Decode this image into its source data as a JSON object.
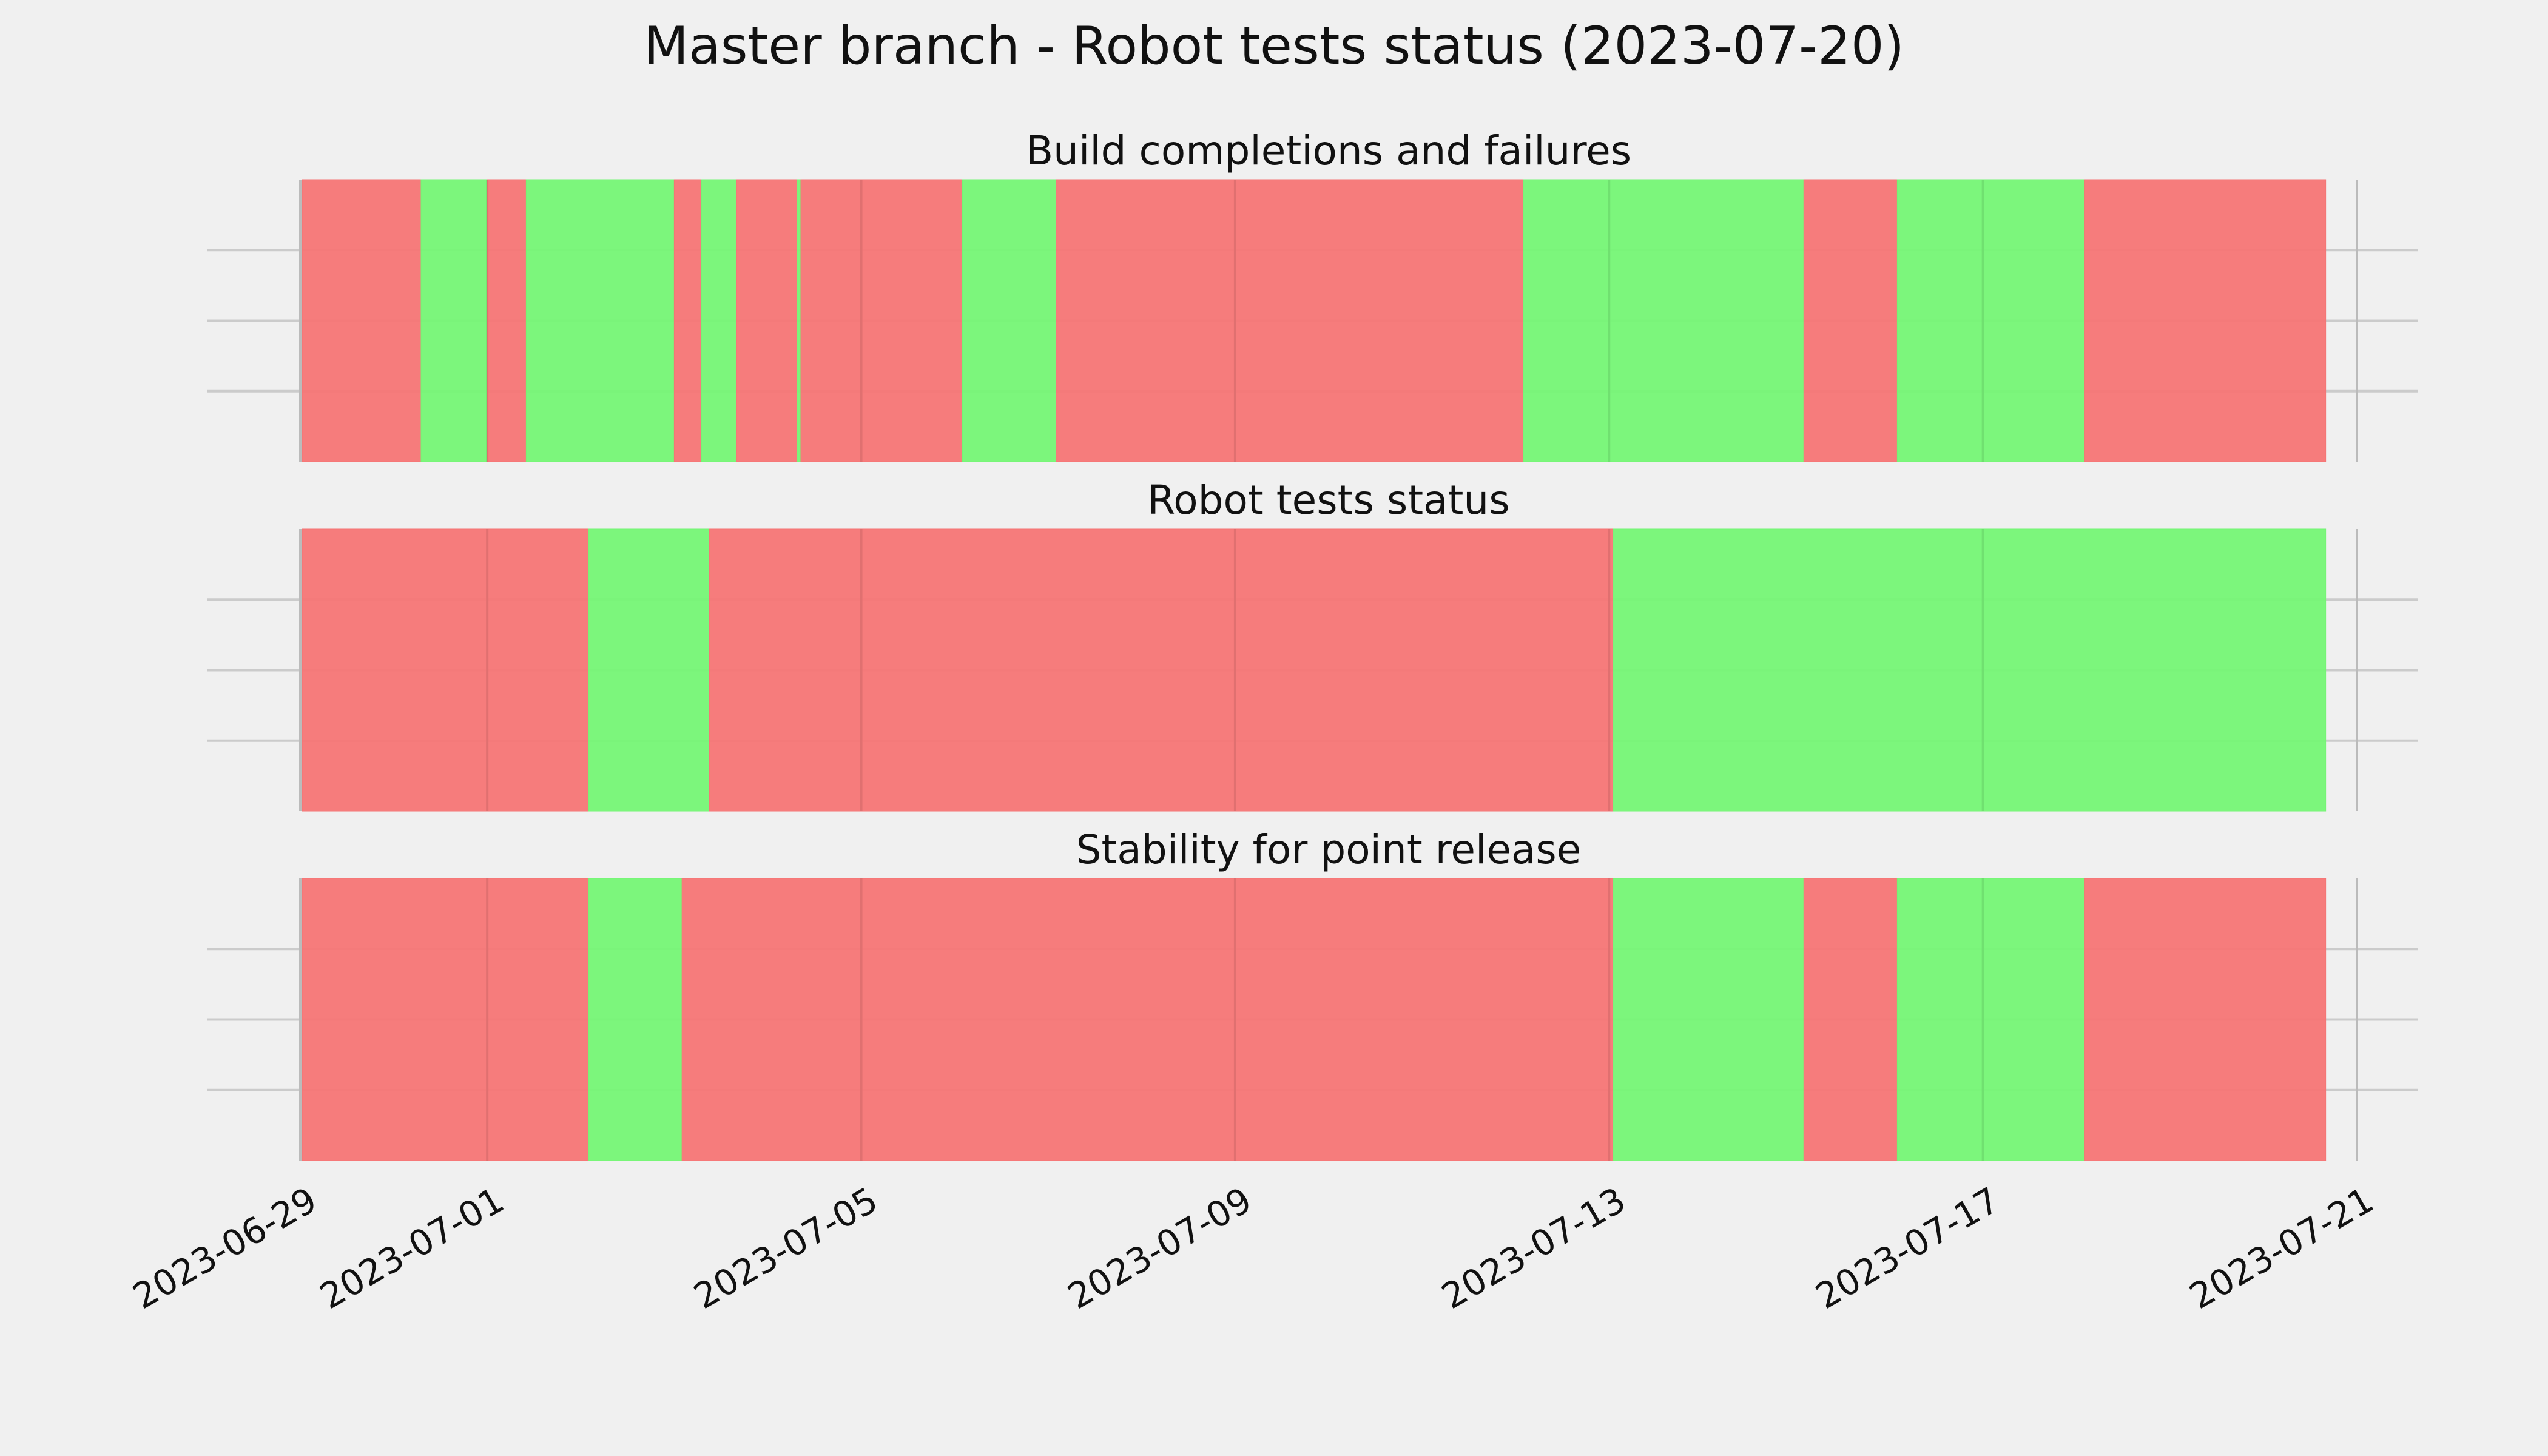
{
  "chart_data": {
    "type": "timeline",
    "title": "Master branch - Robot tests status (2023-07-20)",
    "x_axis": {
      "type": "date",
      "range": [
        "2023-06-29",
        "2023-07-21"
      ],
      "ticks": [
        "2023-06-29",
        "2023-07-01",
        "2023-07-05",
        "2023-07-09",
        "2023-07-13",
        "2023-07-17",
        "2023-07-21"
      ]
    },
    "grid": true,
    "colors": {
      "pass": "#75f575",
      "fail": "#f57575",
      "background": "#f0f0f0",
      "grid": "#cbcbcb"
    },
    "panels": [
      {
        "title": "Build completions and failures",
        "segments": [
          {
            "start": "2023-06-29 00:30",
            "end": "2023-06-30 07:00",
            "status": "fail"
          },
          {
            "start": "2023-06-30 07:00",
            "end": "2023-07-01 00:00",
            "status": "pass"
          },
          {
            "start": "2023-07-01 00:00",
            "end": "2023-07-01 10:00",
            "status": "fail"
          },
          {
            "start": "2023-07-01 10:00",
            "end": "2023-07-03 00:00",
            "status": "pass"
          },
          {
            "start": "2023-07-03 00:00",
            "end": "2023-07-03 07:00",
            "status": "fail"
          },
          {
            "start": "2023-07-03 07:00",
            "end": "2023-07-03 16:00",
            "status": "pass"
          },
          {
            "start": "2023-07-03 16:00",
            "end": "2023-07-04 07:30",
            "status": "fail"
          },
          {
            "start": "2023-07-04 07:30",
            "end": "2023-07-04 08:30",
            "status": "pass"
          },
          {
            "start": "2023-07-04 08:30",
            "end": "2023-07-06 02:00",
            "status": "fail"
          },
          {
            "start": "2023-07-06 02:00",
            "end": "2023-07-07 02:00",
            "status": "pass"
          },
          {
            "start": "2023-07-07 02:00",
            "end": "2023-07-12 02:00",
            "status": "fail"
          },
          {
            "start": "2023-07-12 02:00",
            "end": "2023-07-15 02:00",
            "status": "pass"
          },
          {
            "start": "2023-07-15 02:00",
            "end": "2023-07-16 02:00",
            "status": "fail"
          },
          {
            "start": "2023-07-16 02:00",
            "end": "2023-07-18 02:00",
            "status": "pass"
          },
          {
            "start": "2023-07-18 02:00",
            "end": "2023-07-20 16:00",
            "status": "fail"
          }
        ]
      },
      {
        "title": "Robot tests status",
        "segments": [
          {
            "start": "2023-06-29 00:30",
            "end": "2023-07-02 02:00",
            "status": "fail"
          },
          {
            "start": "2023-07-02 02:00",
            "end": "2023-07-03 09:00",
            "status": "pass"
          },
          {
            "start": "2023-07-03 09:00",
            "end": "2023-07-13 01:00",
            "status": "fail"
          },
          {
            "start": "2023-07-13 01:00",
            "end": "2023-07-20 16:00",
            "status": "pass"
          }
        ]
      },
      {
        "title": "Stability for point release",
        "segments": [
          {
            "start": "2023-06-29 00:30",
            "end": "2023-07-02 02:00",
            "status": "fail"
          },
          {
            "start": "2023-07-02 02:00",
            "end": "2023-07-03 02:00",
            "status": "pass"
          },
          {
            "start": "2023-07-03 02:00",
            "end": "2023-07-13 01:00",
            "status": "fail"
          },
          {
            "start": "2023-07-13 01:00",
            "end": "2023-07-15 02:00",
            "status": "pass"
          },
          {
            "start": "2023-07-15 02:00",
            "end": "2023-07-16 02:00",
            "status": "fail"
          },
          {
            "start": "2023-07-16 02:00",
            "end": "2023-07-18 02:00",
            "status": "pass"
          },
          {
            "start": "2023-07-18 02:00",
            "end": "2023-07-20 16:00",
            "status": "fail"
          }
        ]
      }
    ]
  }
}
